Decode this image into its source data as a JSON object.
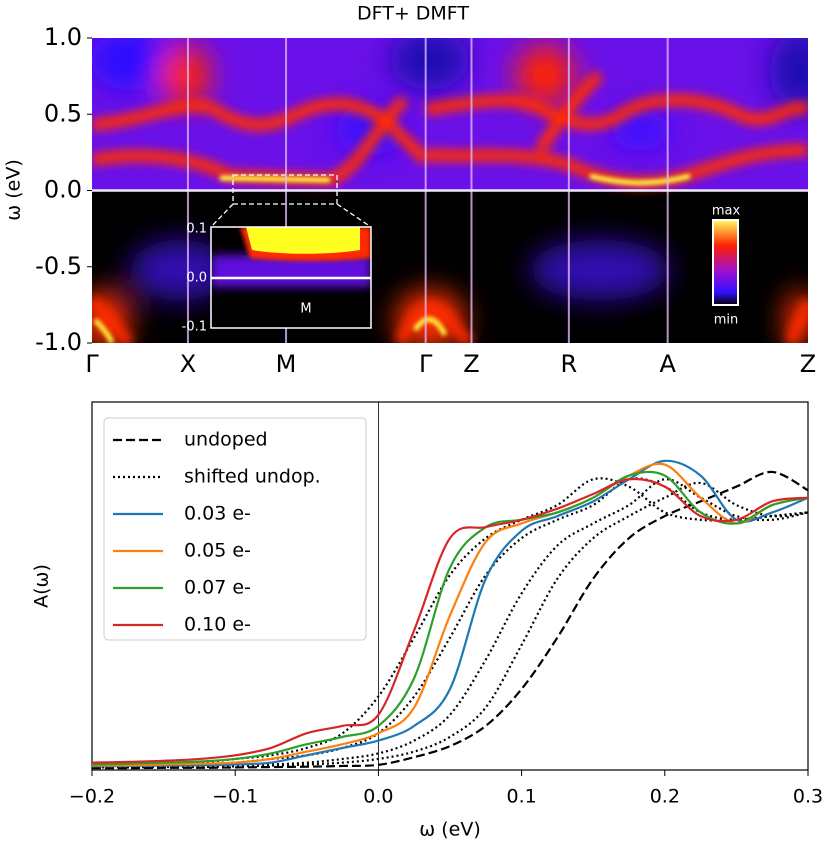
{
  "chart_data": [
    {
      "type": "heatmap",
      "title": "DFT+ DMFT",
      "ylabel": "ω (eV)",
      "ylim": [
        -1,
        1
      ],
      "yticks": [
        {
          "value": 1,
          "label": "1.0"
        },
        {
          "value": 0.5,
          "label": "0.5"
        },
        {
          "value": 0,
          "label": "0.0"
        },
        {
          "value": -0.5,
          "label": "-0.5"
        },
        {
          "value": -1,
          "label": "-1.0"
        }
      ],
      "categories": [
        "Γ",
        "X",
        "M",
        "Γ",
        "Z",
        "R",
        "A",
        "Z"
      ],
      "inset": {
        "label": "M",
        "ylim": [
          -0.1,
          0.1
        ],
        "yticks": [
          {
            "value": 0.1,
            "label": "0.1"
          },
          {
            "value": 0,
            "label": "0.0"
          },
          {
            "value": -0.1,
            "label": "-0.1"
          }
        ]
      },
      "colorbar": {
        "max": "max",
        "min": "min"
      }
    },
    {
      "type": "line",
      "xlabel": "ω (eV)",
      "ylabel": "A(ω)",
      "xlim": [
        -0.2,
        0.3
      ],
      "ylim": [
        0,
        1
      ],
      "xticks": [
        {
          "value": -0.2,
          "label": "−0.2"
        },
        {
          "value": -0.1,
          "label": "−0.1"
        },
        {
          "value": 0,
          "label": "0.0"
        },
        {
          "value": 0.1,
          "label": "0.1"
        },
        {
          "value": 0.2,
          "label": "0.2"
        },
        {
          "value": 0.3,
          "label": "0.3"
        }
      ],
      "x": [
        -0.2,
        -0.175,
        -0.15,
        -0.125,
        -0.1,
        -0.075,
        -0.05,
        -0.025,
        0,
        0.025,
        0.05,
        0.075,
        0.1,
        0.125,
        0.15,
        0.175,
        0.2,
        0.225,
        0.25,
        0.275,
        0.3
      ],
      "series": [
        {
          "name": "undoped",
          "color": "#000000",
          "style": "dashed",
          "values": [
            0.005,
            0.005,
            0.006,
            0.006,
            0.007,
            0.008,
            0.009,
            0.011,
            0.014,
            0.035,
            0.065,
            0.12,
            0.22,
            0.36,
            0.52,
            0.63,
            0.69,
            0.73,
            0.77,
            0.81,
            0.76
          ]
        },
        {
          "name": "shifted undop.",
          "color": "#000000",
          "style": "dotted",
          "values": [
            0.01,
            0.012,
            0.015,
            0.02,
            0.03,
            0.04,
            0.06,
            0.1,
            0.2,
            0.36,
            0.53,
            0.63,
            0.68,
            0.72,
            0.79,
            0.77,
            0.7,
            0.68,
            0.68,
            0.69,
            0.7
          ]
        },
        {
          "color": "#000000",
          "style": "dotted",
          "values": [
            0.01,
            0.01,
            0.012,
            0.015,
            0.02,
            0.03,
            0.04,
            0.06,
            0.1,
            0.2,
            0.36,
            0.53,
            0.63,
            0.68,
            0.72,
            0.79,
            0.77,
            0.7,
            0.68,
            0.69,
            0.7
          ]
        },
        {
          "color": "#000000",
          "style": "dotted",
          "values": [
            0.008,
            0.008,
            0.01,
            0.01,
            0.012,
            0.015,
            0.02,
            0.03,
            0.045,
            0.08,
            0.15,
            0.3,
            0.48,
            0.61,
            0.67,
            0.72,
            0.79,
            0.74,
            0.69,
            0.68,
            0.7
          ]
        },
        {
          "color": "#000000",
          "style": "dotted",
          "values": [
            0.007,
            0.007,
            0.008,
            0.008,
            0.01,
            0.012,
            0.015,
            0.02,
            0.03,
            0.05,
            0.09,
            0.17,
            0.34,
            0.52,
            0.63,
            0.69,
            0.74,
            0.78,
            0.72,
            0.69,
            0.7
          ]
        },
        {
          "name": "0.03 e-",
          "color": "#1f77b4",
          "style": "solid",
          "values": [
            0.01,
            0.011,
            0.012,
            0.013,
            0.015,
            0.02,
            0.04,
            0.06,
            0.08,
            0.12,
            0.22,
            0.52,
            0.65,
            0.69,
            0.73,
            0.79,
            0.84,
            0.8,
            0.68,
            0.7,
            0.74
          ]
        },
        {
          "name": "0.05 e-",
          "color": "#ff7f0e",
          "style": "solid",
          "values": [
            0.012,
            0.013,
            0.015,
            0.017,
            0.02,
            0.03,
            0.05,
            0.07,
            0.1,
            0.17,
            0.42,
            0.62,
            0.67,
            0.7,
            0.74,
            0.8,
            0.83,
            0.74,
            0.67,
            0.72,
            0.74
          ]
        },
        {
          "name": "0.07 e-",
          "color": "#2ca02c",
          "style": "solid",
          "values": [
            0.015,
            0.017,
            0.02,
            0.023,
            0.03,
            0.045,
            0.07,
            0.09,
            0.12,
            0.25,
            0.55,
            0.66,
            0.68,
            0.7,
            0.74,
            0.8,
            0.8,
            0.7,
            0.67,
            0.72,
            0.74
          ]
        },
        {
          "name": "0.10 e-",
          "color": "#d62728",
          "style": "solid",
          "values": [
            0.02,
            0.022,
            0.025,
            0.03,
            0.04,
            0.06,
            0.1,
            0.12,
            0.15,
            0.38,
            0.63,
            0.66,
            0.68,
            0.71,
            0.75,
            0.79,
            0.77,
            0.69,
            0.68,
            0.73,
            0.74
          ]
        }
      ]
    }
  ]
}
